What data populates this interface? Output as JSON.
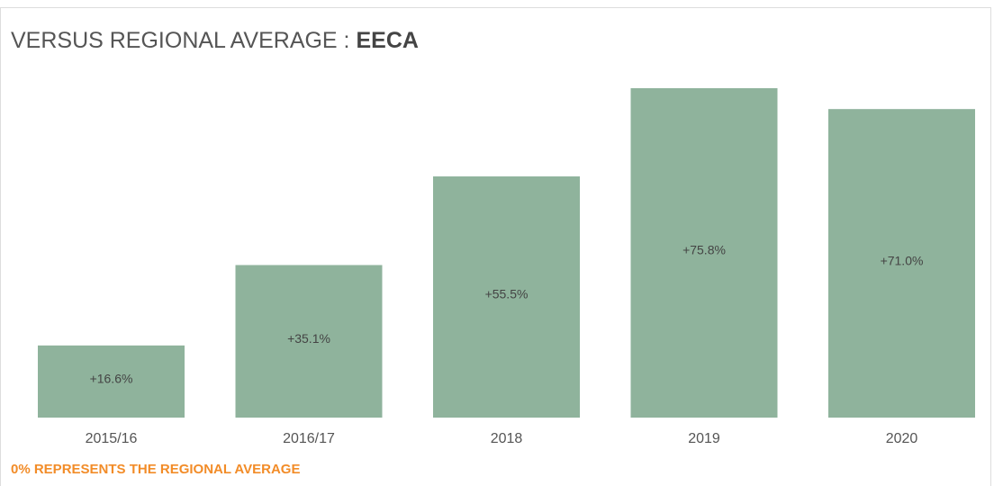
{
  "chart_data": {
    "type": "bar",
    "title": "VERSUS REGIONAL AVERAGE :",
    "title_highlight": "EECA",
    "categories": [
      "2015/16",
      "2016/17",
      "2018",
      "2019",
      "2020"
    ],
    "values": [
      16.6,
      35.1,
      55.5,
      75.8,
      71.0
    ],
    "value_labels": [
      "+16.6%",
      "+35.1%",
      "+55.5%",
      "+75.8%",
      "+71.0%"
    ],
    "color": "#8fb39c",
    "note": "0% REPRESENTS THE REGIONAL AVERAGE"
  }
}
